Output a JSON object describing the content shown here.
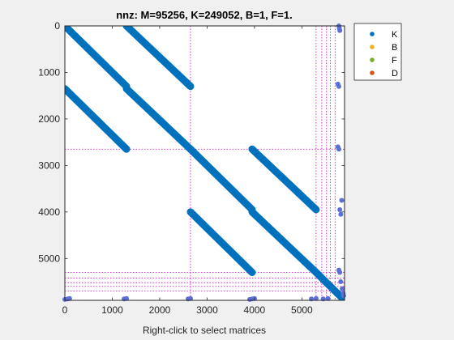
{
  "chart_data": {
    "type": "scatter",
    "title": "nnz: M=95256, K=249052, B=1, F=1.",
    "xlabel": "Right-click to select matrices",
    "ylabel": "",
    "xlim": [
      0,
      5900
    ],
    "ylim": [
      0,
      5900
    ],
    "y_reversed": true,
    "x_ticks": [
      0,
      1000,
      2000,
      3000,
      4000,
      5000
    ],
    "y_ticks": [
      0,
      1000,
      2000,
      3000,
      4000,
      5000
    ],
    "grid": false,
    "legend_position": "top-right outside",
    "legend": [
      {
        "name": "K",
        "color": "#0072BD"
      },
      {
        "name": "B",
        "color": "#EDB120"
      },
      {
        "name": "F",
        "color": "#77AC30"
      },
      {
        "name": "D",
        "color": "#D95319"
      }
    ],
    "partition_lines": {
      "color": "#CC00CC",
      "style": "dotted",
      "positions": [
        2650,
        5300,
        5420,
        5520,
        5600,
        5700
      ]
    },
    "band_segments": [
      {
        "x": [
          0,
          1300
        ],
        "y": [
          0,
          1300
        ]
      },
      {
        "x": [
          1300,
          2650
        ],
        "y": [
          0,
          1300
        ]
      },
      {
        "x": [
          0,
          1300
        ],
        "y": [
          1350,
          2650
        ]
      },
      {
        "x": [
          1300,
          2650
        ],
        "y": [
          1350,
          2650
        ]
      },
      {
        "x": [
          2650,
          3950
        ],
        "y": [
          2650,
          3950
        ]
      },
      {
        "x": [
          3950,
          5300
        ],
        "y": [
          2650,
          3950
        ]
      },
      {
        "x": [
          2650,
          3950
        ],
        "y": [
          4000,
          5300
        ]
      },
      {
        "x": [
          3950,
          5300
        ],
        "y": [
          4000,
          5300
        ]
      },
      {
        "x": [
          5300,
          5900
        ],
        "y": [
          5300,
          5900
        ]
      }
    ],
    "scattered_points": {
      "right_column": [
        {
          "x": 5780,
          "y": 0
        },
        {
          "x": 5790,
          "y": 50
        },
        {
          "x": 5800,
          "y": 100
        },
        {
          "x": 5760,
          "y": 1250
        },
        {
          "x": 5780,
          "y": 1300
        },
        {
          "x": 5760,
          "y": 2600
        },
        {
          "x": 5780,
          "y": 2650
        },
        {
          "x": 5840,
          "y": 3750
        },
        {
          "x": 5800,
          "y": 3950
        },
        {
          "x": 5820,
          "y": 4050
        },
        {
          "x": 5780,
          "y": 5250
        },
        {
          "x": 5800,
          "y": 5300
        },
        {
          "x": 5820,
          "y": 5500
        },
        {
          "x": 5850,
          "y": 5650
        },
        {
          "x": 5870,
          "y": 5750
        },
        {
          "x": 5880,
          "y": 5800
        }
      ],
      "bottom_row": [
        {
          "x": 0,
          "y": 5880
        },
        {
          "x": 60,
          "y": 5870
        },
        {
          "x": 100,
          "y": 5860
        },
        {
          "x": 1250,
          "y": 5870
        },
        {
          "x": 1300,
          "y": 5860
        },
        {
          "x": 2600,
          "y": 5870
        },
        {
          "x": 2650,
          "y": 5860
        },
        {
          "x": 3900,
          "y": 5880
        },
        {
          "x": 3950,
          "y": 5870
        },
        {
          "x": 4000,
          "y": 5860
        },
        {
          "x": 5200,
          "y": 5870
        },
        {
          "x": 5300,
          "y": 5860
        },
        {
          "x": 5450,
          "y": 5870
        },
        {
          "x": 5550,
          "y": 5860
        }
      ]
    }
  }
}
